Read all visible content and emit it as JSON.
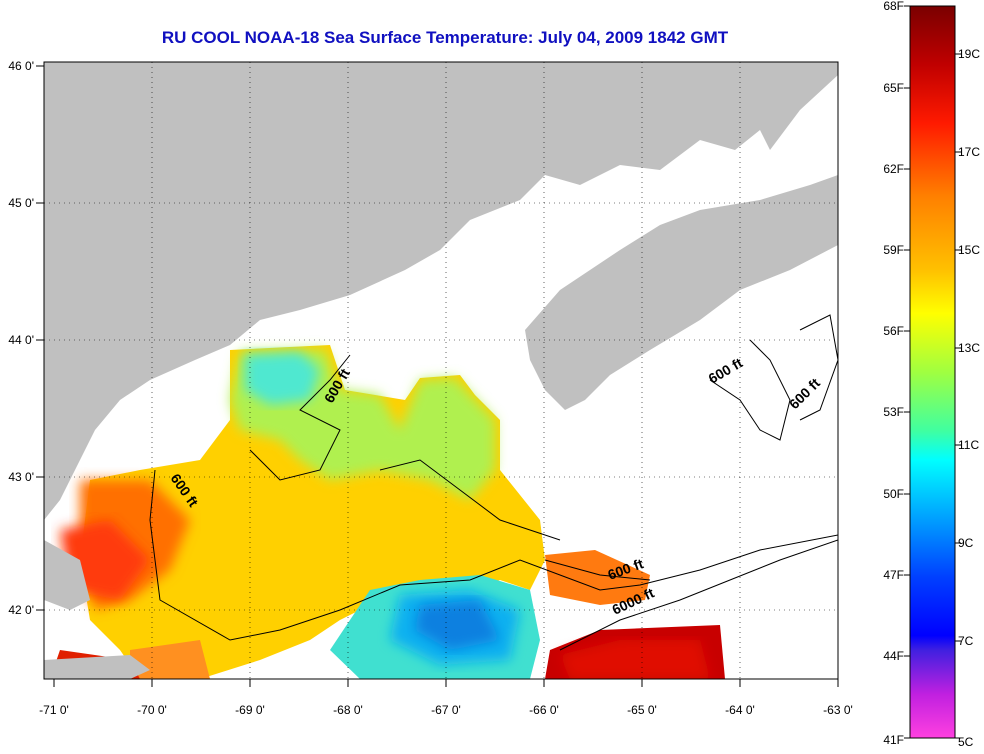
{
  "title": "RU COOL  NOAA-18  Sea Surface Temperature:  July 04, 2009 1842 GMT",
  "longitude_ticks": [
    "-71 0'",
    "-70 0'",
    "-69 0'",
    "-68 0'",
    "-67 0'",
    "-66 0'",
    "-65 0'",
    "-64 0'",
    "-63 0'"
  ],
  "latitude_ticks": [
    "46 0'",
    "45 0'",
    "44 0'",
    "43 0'",
    "42 0'"
  ],
  "contour_labels": [
    "600 ft",
    "600 ft",
    "600 ft",
    "600 ft",
    "600 ft",
    "6000 ft"
  ],
  "colorbar": {
    "fahrenheit_labels": [
      "68F",
      "65F",
      "62F",
      "59F",
      "56F",
      "53F",
      "50F",
      "47F",
      "44F",
      "41F"
    ],
    "celsius_labels": [
      "19C",
      "17C",
      "15C",
      "13C",
      "11C",
      "9C",
      "7C",
      "5C"
    ]
  }
}
